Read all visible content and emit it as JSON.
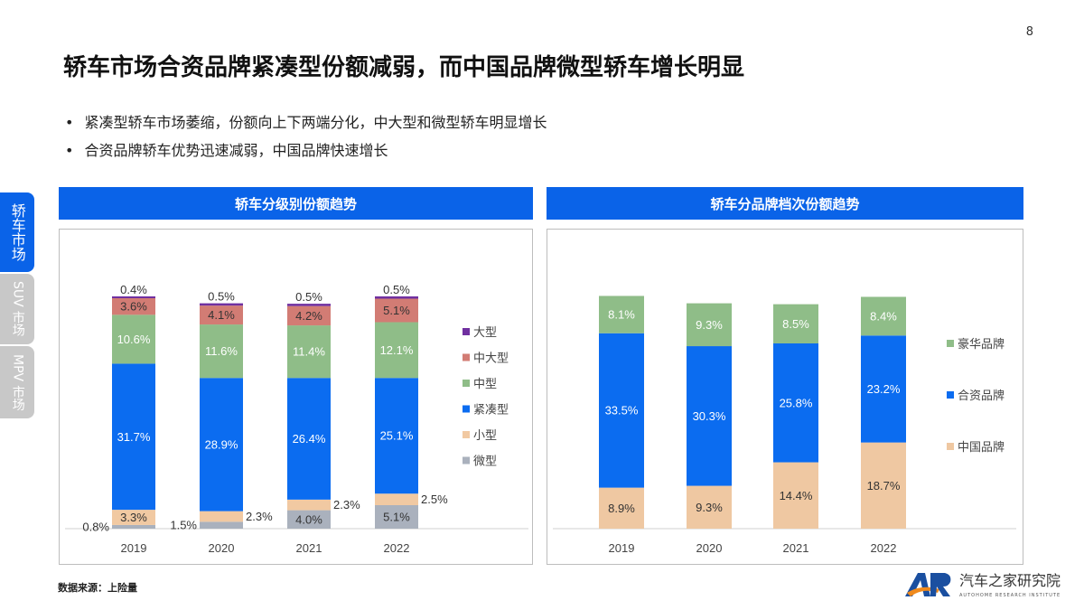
{
  "page_number": "8",
  "title": "轿车市场合资品牌紧凑型份额减弱，而中国品牌微型轿车增长明显",
  "bullets": [
    "紧凑型轿车市场萎缩，份额向上下两端分化，中大型和微型轿车明显增长",
    "合资品牌轿车优势迅速减弱，中国品牌快速增长"
  ],
  "side_tabs": [
    {
      "label": "轿车市场",
      "active": true
    },
    {
      "label": "SUV 市场",
      "active": false
    },
    {
      "label": "MPV 市场",
      "active": false
    }
  ],
  "source": "数据来源：上险量",
  "logo": {
    "mark": "AR",
    "name": "汽车之家研究院",
    "subtitle": "AUTOHOME RESEARCH INSTITUTE"
  },
  "chart_data": [
    {
      "type": "bar",
      "stacked": true,
      "title": "轿车分级别份额趋势",
      "categories": [
        "2019",
        "2020",
        "2021",
        "2022"
      ],
      "legend_position": "right",
      "grid": false,
      "series": [
        {
          "name": "微型",
          "color": "#aab1bd",
          "values": [
            0.8,
            1.5,
            4.0,
            5.1
          ]
        },
        {
          "name": "小型",
          "color": "#f1c9a2",
          "values": [
            3.3,
            2.3,
            2.3,
            2.5
          ]
        },
        {
          "name": "紧凑型",
          "color": "#0b6cf0",
          "values": [
            31.7,
            28.9,
            26.4,
            25.1
          ]
        },
        {
          "name": "中型",
          "color": "#8fbd88",
          "values": [
            10.6,
            11.6,
            11.4,
            12.1
          ]
        },
        {
          "name": "中大型",
          "color": "#d27c74",
          "values": [
            3.6,
            4.1,
            4.2,
            5.1
          ]
        },
        {
          "name": "大型",
          "color": "#7030a0",
          "values": [
            0.4,
            0.5,
            0.5,
            0.5
          ]
        }
      ],
      "unit": "%"
    },
    {
      "type": "bar",
      "stacked": true,
      "title": "轿车分品牌档次份额趋势",
      "categories": [
        "2019",
        "2020",
        "2021",
        "2022"
      ],
      "legend_position": "right",
      "grid": false,
      "series": [
        {
          "name": "中国品牌",
          "color": "#efc8a2",
          "values": [
            8.9,
            9.3,
            14.4,
            18.7
          ]
        },
        {
          "name": "合资品牌",
          "color": "#0b6cf0",
          "values": [
            33.5,
            30.3,
            25.8,
            23.2
          ]
        },
        {
          "name": "豪华品牌",
          "color": "#8fbd88",
          "values": [
            8.1,
            9.3,
            8.5,
            8.4
          ]
        }
      ],
      "unit": "%"
    }
  ]
}
